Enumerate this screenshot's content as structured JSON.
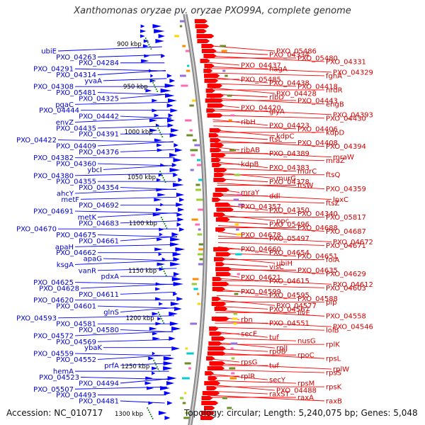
{
  "title": "Xanthomonas oryzae pv. oryzae PXO99A, complete genome",
  "footer": {
    "accession": "Accession: NC_010717",
    "summary": "Topology: circular; Length: 5,240,075 bp; Genes: 5,048"
  },
  "colors": {
    "forward_strand": "#ff0000",
    "reverse_strand": "#0000ff",
    "backbone": "#8a8a8a",
    "tick_dots": "#008000"
  },
  "ticks": [
    "900 kbp",
    "950 kbp",
    "1000 kbp",
    "1050 kbp",
    "1100 kbp",
    "1150 kbp",
    "1200 kbp",
    "1250 kbp",
    "1300 kbp"
  ],
  "left_labels": [
    "ubiE",
    "PXO_04263",
    "PXO_04284",
    "PXO_04291",
    "PXO_04314",
    "yvaA",
    "PXO_04308",
    "PXO_05481",
    "PXO_04325",
    "pgaC",
    "PXO_04444",
    "PXO_04442",
    "envZ",
    "PXO_04435",
    "PXO_04391",
    "PXO_04422",
    "PXO_04409",
    "PXO_04376",
    "PXO_04382",
    "PXO_04360",
    "ybcI",
    "PXO_04380",
    "PXO_04355",
    "PXO_04354",
    "ahcY",
    "metF",
    "PXO_04692",
    "PXO_04691",
    "metK",
    "PXO_04683",
    "PXO_04670",
    "PXO_04675",
    "PXO_04661",
    "apaH",
    "PXO_04662",
    "apaG",
    "ksgA",
    "vanR",
    "pdxA",
    "PXO_04625",
    "PXO_04628",
    "PXO_04611",
    "PXO_04620",
    "PXO_04601",
    "glnS",
    "PXO_04593",
    "PXO_04581",
    "PXO_04580",
    "PXO_04572",
    "PXO_04569",
    "ybaK",
    "PXO_04559",
    "PXO_04552",
    "prfA",
    "hemA",
    "PXO_04523",
    "PXO_04494",
    "PXO_05507",
    "PXO_04493",
    "PXO_04481"
  ],
  "right_labels": [
    "PXO_05486",
    "PXO_04334",
    "PXO_05480",
    "PXO_04331",
    "PXO_04437",
    "nagA",
    "PXO_04329",
    "fghA",
    "PXO_05485",
    "PXO_04438",
    "PXO_04418",
    "nrdR",
    "PXO_04428",
    "rlbD",
    "PXO_04443",
    "engB",
    "PXO_04420",
    "glyA",
    "PXO_04393",
    "PXO_04430",
    "ribH",
    "PXO_04423",
    "PXO_04406",
    "kdpD",
    "kdpC",
    "ftsL",
    "PXO_04408",
    "PXO_04394",
    "ribAB",
    "PXO_04389",
    "mraW",
    "mraZ",
    "kdpB",
    "PXO_04383",
    "murC",
    "ftsQ",
    "murG",
    "PXO_04378",
    "ftsW",
    "PXO_04359",
    "mraY",
    "ddl",
    "lpxC",
    "ftsZ",
    "PXO_04357",
    "PXO_04350",
    "PXO_04340",
    "PXO_05817",
    "ppc",
    "PXO_05496",
    "PXO_04688",
    "PXO_04687",
    "PXO_04678",
    "PXO_05497",
    "PXO_04672",
    "PXO_04671",
    "PXO_04660",
    "PXO_04654",
    "PXO_04651",
    "folA",
    "ubiH",
    "visC",
    "PXO_04635",
    "PXO_04629",
    "PXO_04621",
    "PXO_04615",
    "PXO_04612",
    "PXO_04603",
    "PXO_04599",
    "PXO_04595",
    "PXO_04588",
    "pip",
    "PXO_04577",
    "PXO_04567",
    "ilvE",
    "PXO_04558",
    "rbn",
    "PXO_04551",
    "PXO_04546",
    "lolB",
    "secE",
    "tuf",
    "nusG",
    "rplK",
    "rplJ",
    "rpoB",
    "rpoC",
    "rpsL",
    "rpsG",
    "tuf",
    "rplW",
    "rpsS",
    "rplR",
    "secY",
    "rpsM",
    "rpsK",
    "PXO_04488",
    "raxST",
    "raxA",
    "raxB"
  ]
}
